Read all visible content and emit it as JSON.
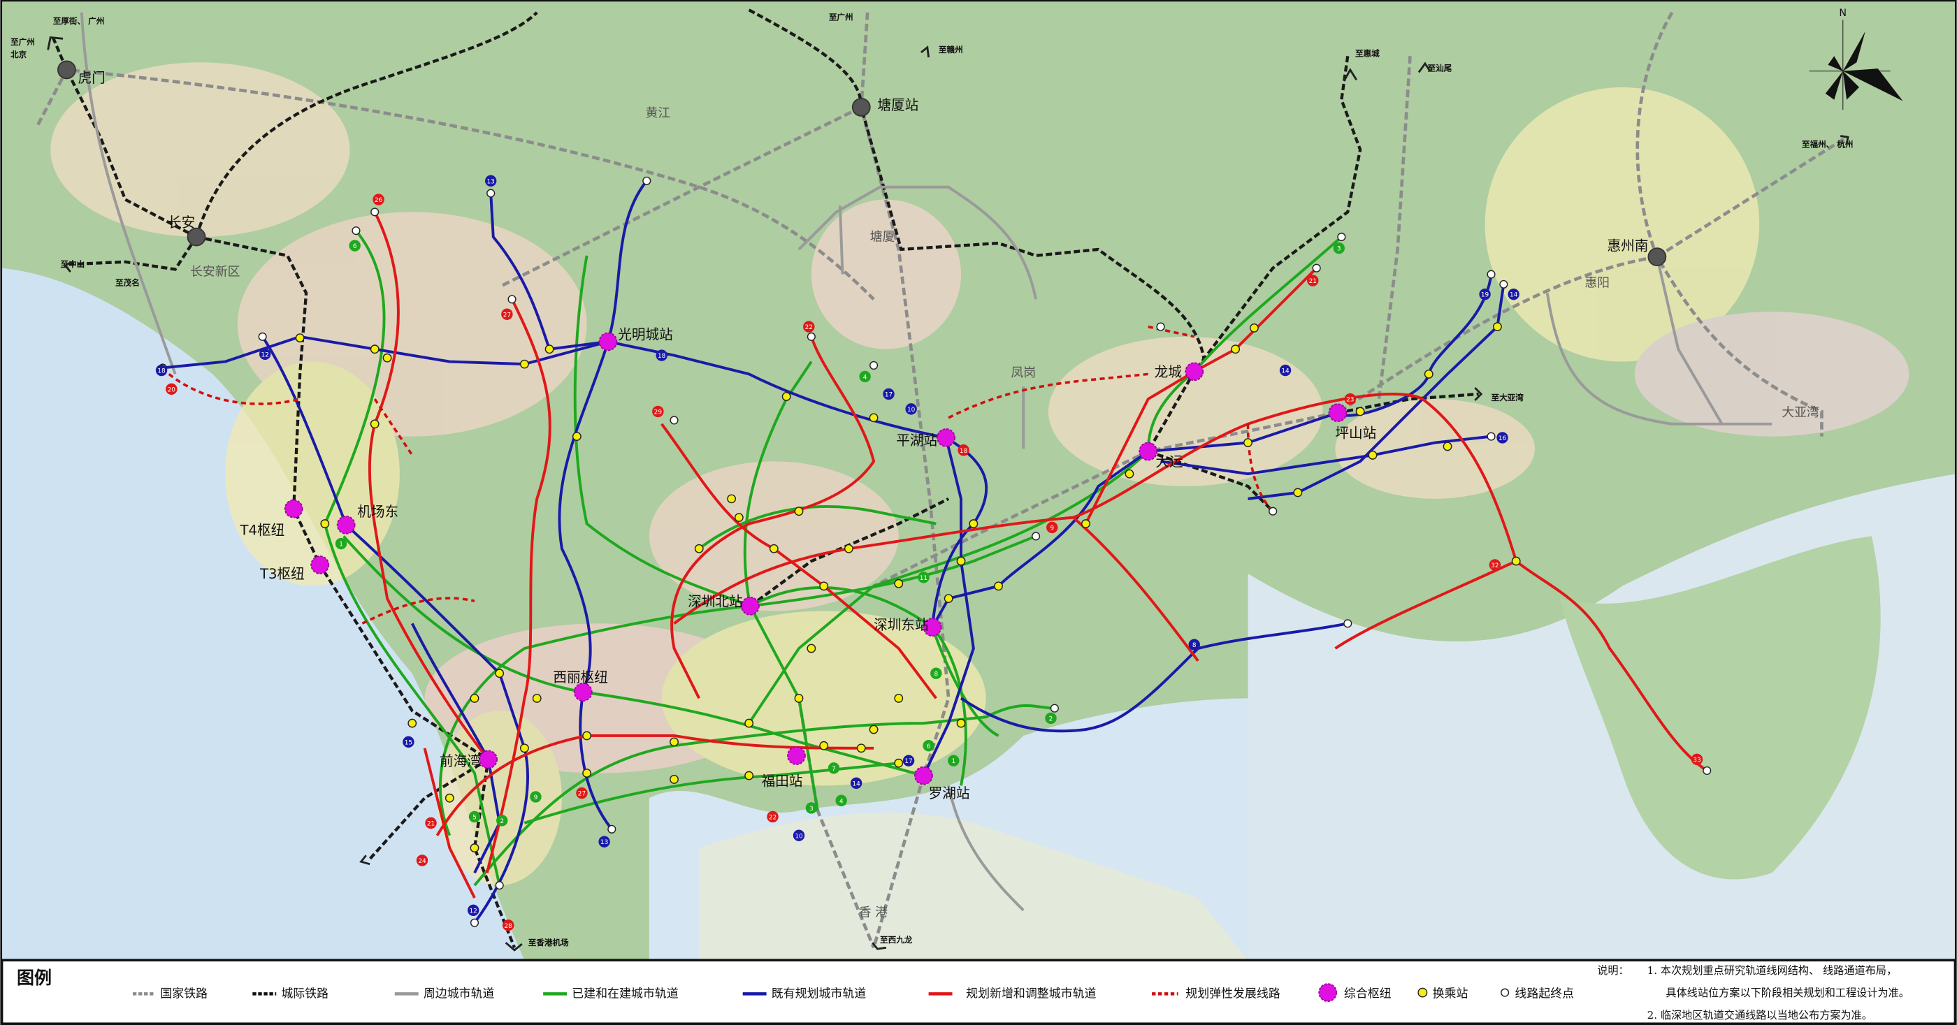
{
  "map": {
    "north_label": "N",
    "hubs": {
      "humen": "虎门",
      "changan": "长安",
      "tangxia_station": "塘厦站",
      "huizhou_south": "惠州南",
      "guangmingcheng": "光明城站",
      "pinghu": "平湖站",
      "longcheng": "龙城",
      "dayun": "大运",
      "pingshan": "坪山站",
      "airport_east": "机场东",
      "t4": "T4枢纽",
      "t3": "T3枢纽",
      "shenzhen_north": "深圳北站",
      "shenzhen_east": "深圳东站",
      "xili": "西丽枢纽",
      "qianhaiwan": "前海湾",
      "futian": "福田站",
      "luohu": "罗湖站"
    },
    "areas": {
      "changan_new": "长安新区",
      "huangjiang": "黄江",
      "tangxia": "塘厦",
      "fenggang": "凤岗",
      "huiyang": "惠阳",
      "daya_bay": "大亚湾",
      "hongkong": "香    港"
    },
    "destinations": {
      "houjie": "至厚街、 广州",
      "guangzhou_beijing_1": "至广州",
      "guangzhou_beijing_2": "北京",
      "zhongshan": "至中山",
      "maoming": "至茂名",
      "guangzhou": "至广州",
      "ganzhou": "至赣州",
      "huicheng": "至惠城",
      "shanwei": "至汕尾",
      "fuzhou_hangzhou": "至福州、 杭州",
      "daya_bay": "至大亚湾",
      "hk_airport": "至香港机场",
      "west_kowloon": "至西九龙"
    },
    "line_badges": [
      {
        "num": "18",
        "type": "blue"
      },
      {
        "num": "20",
        "type": "red"
      },
      {
        "num": "12",
        "type": "blue"
      },
      {
        "num": "26",
        "type": "red"
      },
      {
        "num": "13",
        "type": "blue"
      },
      {
        "num": "6",
        "type": "green"
      },
      {
        "num": "27",
        "type": "red"
      },
      {
        "num": "18",
        "type": "blue"
      },
      {
        "num": "22",
        "type": "red"
      },
      {
        "num": "4",
        "type": "green"
      },
      {
        "num": "29",
        "type": "red"
      },
      {
        "num": "10",
        "type": "blue"
      },
      {
        "num": "18",
        "type": "red"
      },
      {
        "num": "17",
        "type": "blue"
      },
      {
        "num": "3",
        "type": "green"
      },
      {
        "num": "21",
        "type": "red"
      },
      {
        "num": "14",
        "type": "blue"
      },
      {
        "num": "23",
        "type": "red"
      },
      {
        "num": "16",
        "type": "blue"
      },
      {
        "num": "19",
        "type": "blue"
      },
      {
        "num": "14",
        "type": "blue"
      },
      {
        "num": "32",
        "type": "red"
      },
      {
        "num": "8",
        "type": "blue"
      },
      {
        "num": "33",
        "type": "red"
      },
      {
        "num": "11",
        "type": "green"
      },
      {
        "num": "1",
        "type": "green"
      },
      {
        "num": "15",
        "type": "blue"
      },
      {
        "num": "21",
        "type": "red"
      },
      {
        "num": "24",
        "type": "red"
      },
      {
        "num": "12",
        "type": "blue"
      },
      {
        "num": "28",
        "type": "red"
      },
      {
        "num": "5",
        "type": "green"
      },
      {
        "num": "2",
        "type": "green"
      },
      {
        "num": "9",
        "type": "green"
      },
      {
        "num": "13",
        "type": "blue"
      },
      {
        "num": "27",
        "type": "red"
      },
      {
        "num": "22",
        "type": "red"
      },
      {
        "num": "10",
        "type": "blue"
      },
      {
        "num": "3",
        "type": "green"
      },
      {
        "num": "4",
        "type": "green"
      },
      {
        "num": "7",
        "type": "green"
      },
      {
        "num": "14",
        "type": "blue"
      },
      {
        "num": "17",
        "type": "blue"
      },
      {
        "num": "1",
        "type": "green"
      },
      {
        "num": "6",
        "type": "green"
      },
      {
        "num": "8",
        "type": "green"
      },
      {
        "num": "2",
        "type": "green"
      },
      {
        "num": "9",
        "type": "red"
      }
    ]
  },
  "legend": {
    "title": "图例",
    "items": [
      {
        "label": "国家铁路"
      },
      {
        "label": "城际铁路"
      },
      {
        "label": "周边城市轨道"
      },
      {
        "label": "已建和在建城市轨道"
      },
      {
        "label": "既有规划城市轨道"
      },
      {
        "label": "规划新增和调整城市轨道"
      },
      {
        "label": "规划弹性发展线路"
      },
      {
        "label": "综合枢纽"
      },
      {
        "label": "换乘站"
      },
      {
        "label": "线路起终点"
      }
    ],
    "colors": {
      "national_rail": "#8c8c8c",
      "intercity": "#1a1a1a",
      "surrounding": "#9a9a9a",
      "built": "#1fa81f",
      "planned": "#1a1aa8",
      "new": "#e01818",
      "flexible": "#d01010",
      "hub": "#e010e0",
      "transfer": "#f5ee10",
      "terminus": "#ffffff"
    }
  },
  "notes": {
    "heading": "说明：",
    "note1_line1": "1. 本次规划重点研究轨道线网结构、 线路通道布局，",
    "note1_line2": "具体线站位方案以下阶段相关规划和工程设计为准。",
    "note2": "2. 临深地区轨道交通线路以当地公布方案为准。"
  }
}
